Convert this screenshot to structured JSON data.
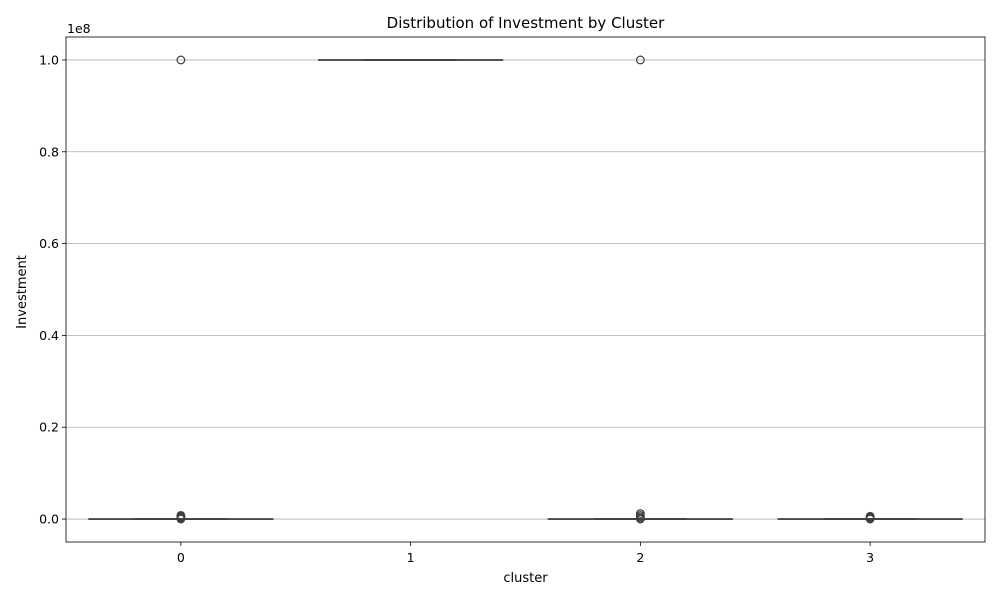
{
  "chart_data": {
    "type": "box",
    "title": "Distribution of Investment by Cluster",
    "xlabel": "cluster",
    "ylabel": "Investment",
    "y_offset_label": "1e8",
    "ylim": [
      -5000000,
      105000000
    ],
    "yticks": [
      0,
      20000000,
      40000000,
      60000000,
      80000000,
      100000000
    ],
    "ytick_labels": [
      "0.0",
      "0.2",
      "0.4",
      "0.6",
      "0.8",
      "1.0"
    ],
    "categories": [
      "0",
      "1",
      "2",
      "3"
    ],
    "grid": "horizontal",
    "boxes": [
      {
        "cluster": "0",
        "whisker_low": 0,
        "q1": 0,
        "median": 0,
        "q3": 0,
        "whisker_high": 0,
        "outliers": [
          100000000,
          0,
          200000,
          400000,
          600000,
          800000
        ]
      },
      {
        "cluster": "1",
        "whisker_low": 100000000,
        "q1": 100000000,
        "median": 100000000,
        "q3": 100000000,
        "whisker_high": 100000000,
        "outliers": []
      },
      {
        "cluster": "2",
        "whisker_low": 0,
        "q1": 0,
        "median": 0,
        "q3": 0,
        "whisker_high": 0,
        "outliers": [
          100000000,
          0,
          200000,
          500000,
          800000,
          1200000
        ]
      },
      {
        "cluster": "3",
        "whisker_low": 0,
        "q1": 0,
        "median": 0,
        "q3": 0,
        "whisker_high": 0,
        "outliers": [
          0,
          200000,
          400000,
          600000
        ]
      }
    ]
  },
  "colors": {
    "box_line": "#3f3f3f",
    "grid": "#b0b0b0",
    "axis": "#000000"
  }
}
